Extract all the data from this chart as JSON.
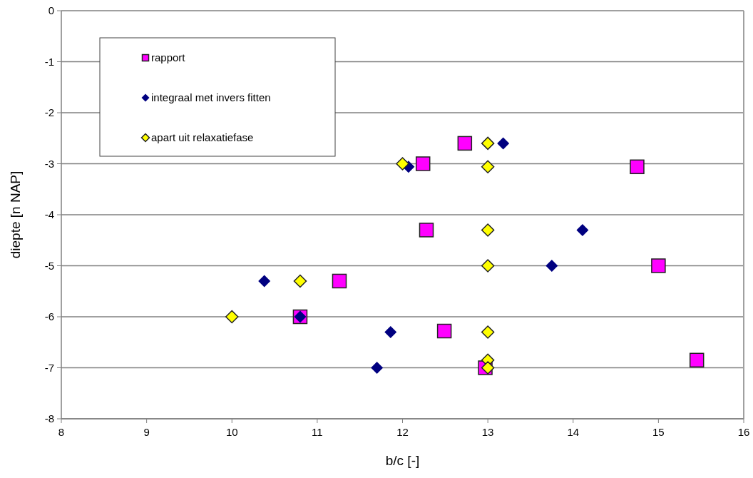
{
  "chart_data": {
    "type": "scatter",
    "xlabel": "b/c [-]",
    "ylabel": "diepte [n NAP]",
    "xlim": [
      8,
      16
    ],
    "xticks": [
      8,
      9,
      10,
      11,
      12,
      13,
      14,
      15,
      16
    ],
    "ylim": [
      -8,
      0
    ],
    "yticks": [
      -8,
      -7,
      -6,
      -5,
      -4,
      -3,
      -2,
      -1,
      0
    ],
    "grid": "y",
    "legend": "top left",
    "series": [
      {
        "name": "rapport",
        "color": "#ff00ff",
        "marker": "square",
        "x": [
          12.73,
          12.24,
          14.75,
          12.28,
          15.0,
          11.26,
          10.8,
          12.49,
          12.97,
          15.45
        ],
        "values": [
          -2.6,
          -3.0,
          -3.06,
          -4.3,
          -5.0,
          -5.3,
          -6.0,
          -6.28,
          -7.0,
          -6.85
        ]
      },
      {
        "name": "integraal met invers fitten",
        "color": "#000080",
        "marker": "diamond",
        "x": [
          13.18,
          12.07,
          10.38,
          10.8,
          11.86,
          11.7,
          13.75,
          14.11
        ],
        "values": [
          -2.6,
          -3.06,
          -5.3,
          -6.0,
          -6.3,
          -7.0,
          -5.0,
          -4.3
        ]
      },
      {
        "name": "apart uit relaxatiefase",
        "color": "#ffff00",
        "marker": "diamond",
        "x": [
          12.0,
          13.0,
          13.0,
          13.0,
          13.0,
          10.8,
          10.0,
          13.0,
          13.0,
          13.0
        ],
        "values": [
          -3.0,
          -2.6,
          -3.06,
          -4.3,
          -5.0,
          -5.3,
          -6.0,
          -6.3,
          -6.85,
          -7.0
        ]
      }
    ]
  }
}
